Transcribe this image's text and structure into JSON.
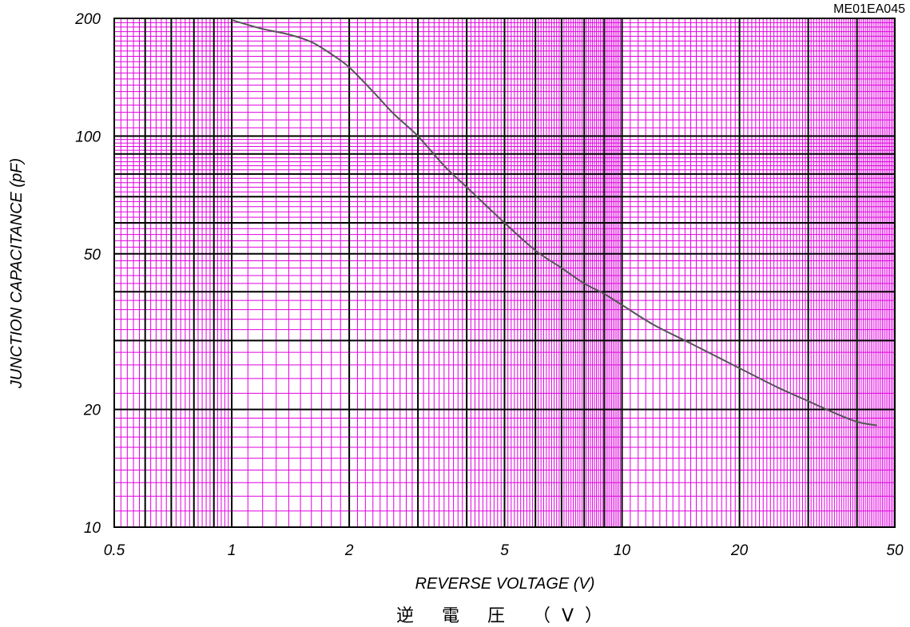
{
  "chart_data": {
    "type": "line",
    "code": "ME01EA045",
    "xlabel": "REVERSE VOLTAGE (V)",
    "xlabel_jp": "逆 電 圧 （V）",
    "ylabel": "JUNCTION CAPACITANCE (pF)",
    "x_scale": "log",
    "y_scale": "log",
    "xlim": [
      0.5,
      50
    ],
    "ylim": [
      10,
      200
    ],
    "x_ticks": [
      {
        "v": 0.5,
        "label": "0.5"
      },
      {
        "v": 1,
        "label": "1"
      },
      {
        "v": 2,
        "label": "2"
      },
      {
        "v": 5,
        "label": "5"
      },
      {
        "v": 10,
        "label": "10"
      },
      {
        "v": 20,
        "label": "20"
      },
      {
        "v": 50,
        "label": "50"
      }
    ],
    "y_ticks": [
      {
        "v": 10,
        "label": "10"
      },
      {
        "v": 20,
        "label": "20"
      },
      {
        "v": 50,
        "label": "50"
      },
      {
        "v": 100,
        "label": "100"
      },
      {
        "v": 200,
        "label": "200"
      }
    ],
    "grid": true,
    "colors": {
      "major_grid": "#000000",
      "minor_grid": "#e000e0",
      "curve": "#555555"
    },
    "series": [
      {
        "x": [
          1.0,
          1.2,
          1.4,
          1.6,
          1.8,
          2.0,
          2.3,
          2.6,
          3.0,
          3.5,
          4.0,
          5.0,
          6.0,
          7.0,
          8.0,
          9.0,
          10.0,
          12.0,
          15.0,
          20.0,
          25.0,
          30.0,
          35.0,
          40.0,
          45.0
        ],
        "y": [
          198,
          188,
          182,
          174,
          162,
          150,
          130,
          114,
          100,
          84,
          74,
          60,
          51,
          46,
          42,
          39.5,
          37,
          33,
          29.5,
          25.5,
          22.8,
          21,
          19.6,
          18.6,
          18.2
        ]
      }
    ]
  }
}
